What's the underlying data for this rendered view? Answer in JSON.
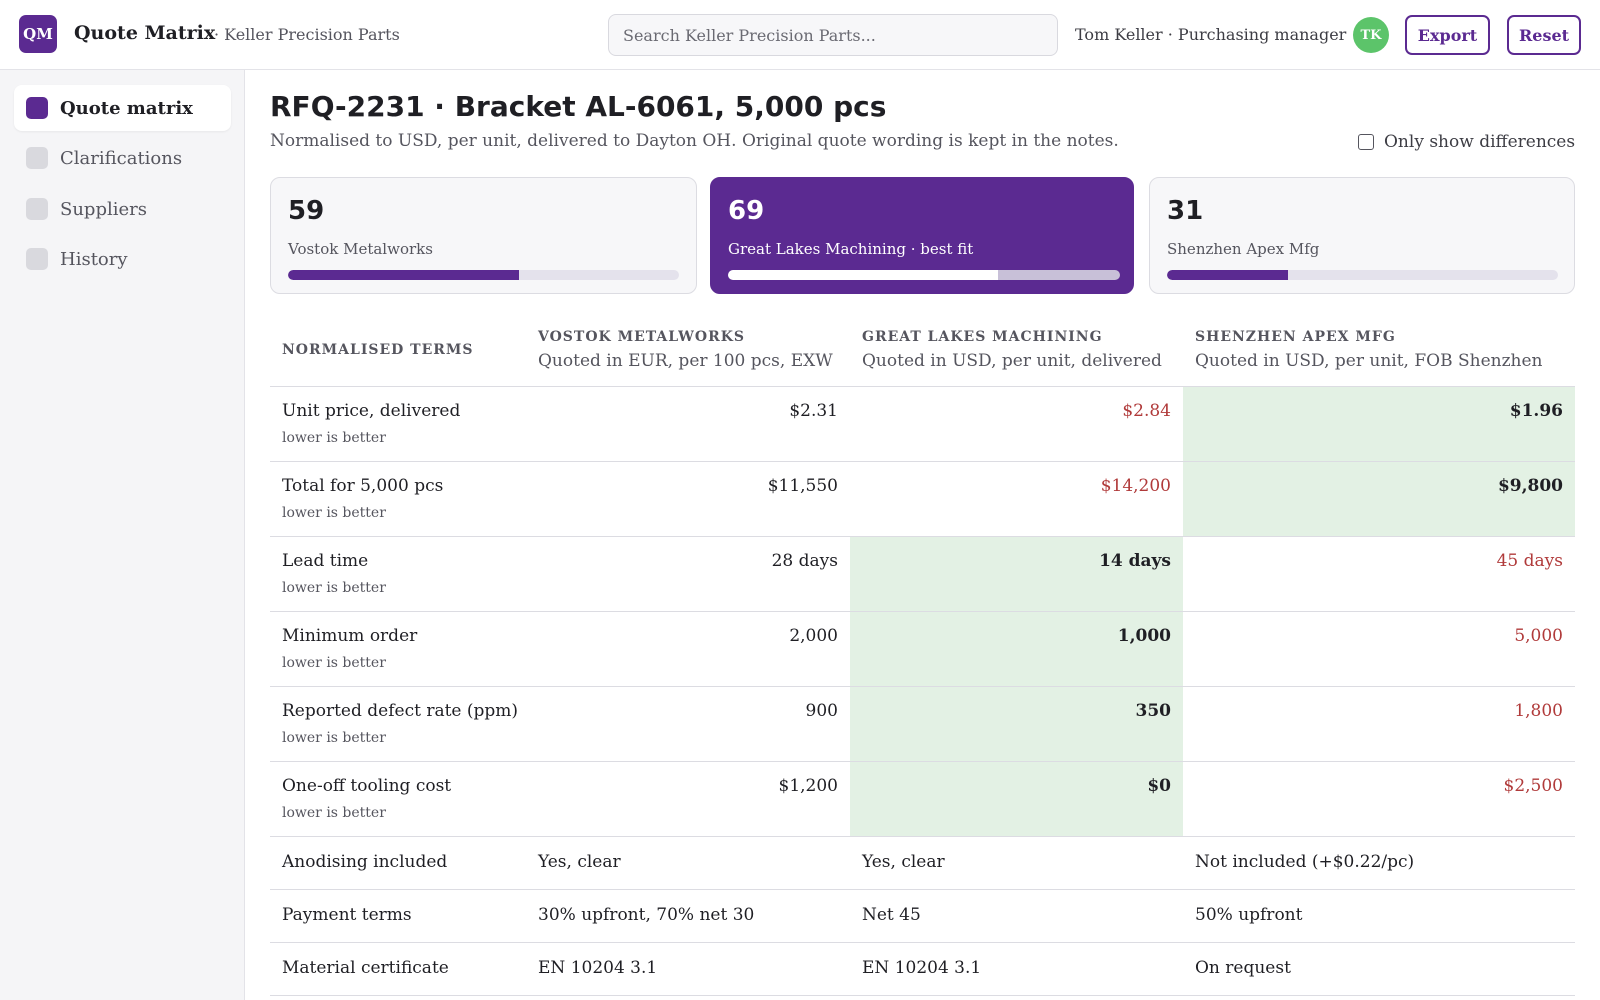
{
  "app": {
    "logo": "QM",
    "title": "Quote Matrix",
    "company": "· Keller Precision Parts",
    "search_placeholder": "Search Keller Precision Parts...",
    "user": "Tom Keller · Purchasing manager",
    "avatar": "TK",
    "export_label": "Export",
    "reset_label": "Reset",
    "accent": "#5b2a91"
  },
  "sidebar": {
    "items": [
      {
        "label": "Quote matrix",
        "active": true
      },
      {
        "label": "Clarifications",
        "active": false
      },
      {
        "label": "Suppliers",
        "active": false
      },
      {
        "label": "History",
        "active": false
      }
    ]
  },
  "page": {
    "title": "RFQ-2231 · Bracket AL-6061, 5,000 pcs",
    "description": "Normalised to USD, per unit, delivered to Dayton OH. Original quote wording is kept in the notes.",
    "diff_toggle_label": "Only show differences",
    "diff_toggle_checked": false
  },
  "scorecards": [
    {
      "score": "59",
      "name": "Vostok Metalworks",
      "fill": 0.59,
      "best": false
    },
    {
      "score": "69",
      "name": "Great Lakes Machining · best fit",
      "fill": 0.69,
      "best": true
    },
    {
      "score": "31",
      "name": "Shenzhen Apex Mfg",
      "fill": 0.31,
      "best": false
    }
  ],
  "matrix": {
    "terms_header": "NORMALISED TERMS",
    "suppliers": [
      {
        "name": "VOSTOK METALWORKS",
        "basis": "Quoted in EUR, per 100 pcs, EXW"
      },
      {
        "name": "GREAT LAKES MACHINING",
        "basis": "Quoted in USD, per unit, delivered"
      },
      {
        "name": "SHENZHEN APEX MFG",
        "basis": "Quoted in USD, per unit, FOB Shenzhen"
      }
    ],
    "numeric_rows": [
      {
        "label": "Unit price, delivered",
        "hint": "lower is better",
        "values": [
          "$2.31",
          "$2.84",
          "$1.96"
        ],
        "status": [
          "",
          "worst",
          "best"
        ]
      },
      {
        "label": "Total for 5,000 pcs",
        "hint": "lower is better",
        "values": [
          "$11,550",
          "$14,200",
          "$9,800"
        ],
        "status": [
          "",
          "worst",
          "best"
        ]
      },
      {
        "label": "Lead time",
        "hint": "lower is better",
        "values": [
          "28 days",
          "14 days",
          "45 days"
        ],
        "status": [
          "",
          "best",
          "worst"
        ]
      },
      {
        "label": "Minimum order",
        "hint": "lower is better",
        "values": [
          "2,000",
          "1,000",
          "5,000"
        ],
        "status": [
          "",
          "best",
          "worst"
        ]
      },
      {
        "label": "Reported defect rate (ppm)",
        "hint": "lower is better",
        "values": [
          "900",
          "350",
          "1,800"
        ],
        "status": [
          "",
          "best",
          "worst"
        ]
      },
      {
        "label": "One-off tooling cost",
        "hint": "lower is better",
        "values": [
          "$1,200",
          "$0",
          "$2,500"
        ],
        "status": [
          "",
          "best",
          "worst"
        ]
      }
    ],
    "text_rows": [
      {
        "label": "Anodising included",
        "values": [
          "Yes, clear",
          "Yes, clear",
          "Not included (+$0.22/pc)"
        ]
      },
      {
        "label": "Payment terms",
        "values": [
          "30% upfront, 70% net 30",
          "Net 45",
          "50% upfront"
        ]
      },
      {
        "label": "Material certificate",
        "values": [
          "EN 10204 3.1",
          "EN 10204 3.1",
          "On request"
        ]
      }
    ]
  }
}
